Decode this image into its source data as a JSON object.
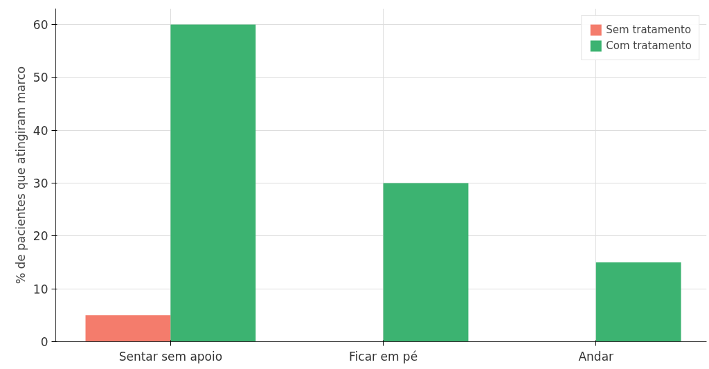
{
  "chart_data": {
    "type": "bar",
    "ylabel": "% de pacientes que atingiram marco",
    "categories": [
      "Sentar sem apoio",
      "Ficar em pé",
      "Andar"
    ],
    "series": [
      {
        "name": "Sem tratamento",
        "color": "#f47c6c",
        "values": [
          5,
          0,
          0
        ]
      },
      {
        "name": "Com tratamento",
        "color": "#3cb371",
        "values": [
          60,
          30,
          15
        ]
      }
    ],
    "ylim": [
      0,
      63
    ],
    "yticks": [
      0,
      10,
      20,
      30,
      40,
      50,
      60
    ],
    "grid": true,
    "legend": "top right"
  }
}
